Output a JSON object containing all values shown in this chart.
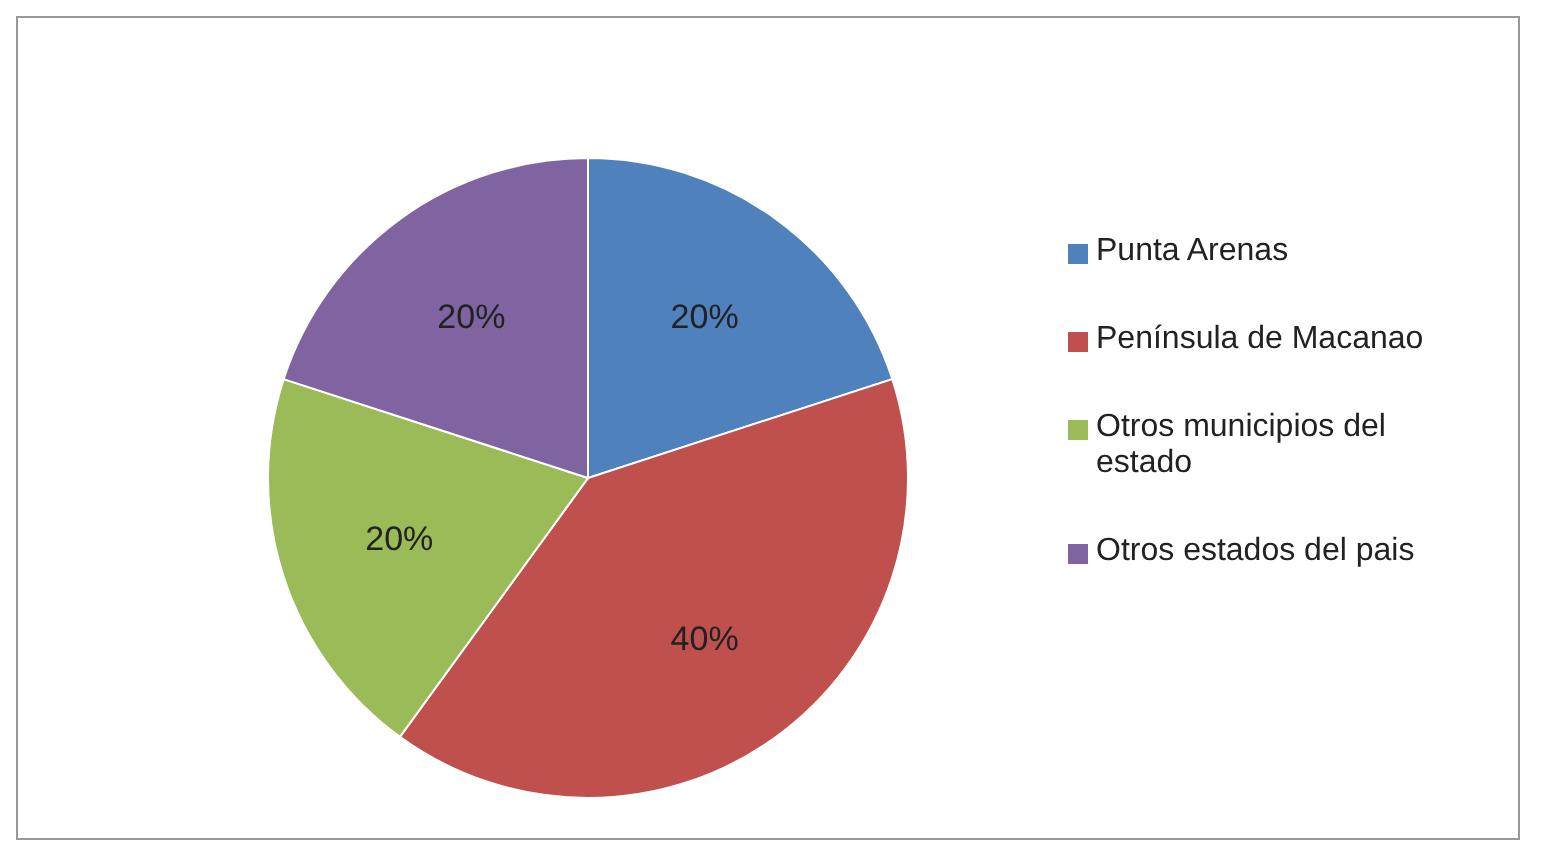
{
  "chart_data": {
    "type": "pie",
    "categories": [
      "Punta Arenas",
      "Península de Macanao",
      "Otros municipios del estado",
      "Otros estados del pais"
    ],
    "values": [
      20,
      40,
      20,
      20
    ],
    "colors": [
      "#4f81bd",
      "#c0504d",
      "#9bbb59",
      "#8064a2"
    ],
    "value_labels": [
      "20%",
      "40%",
      "20%",
      "20%"
    ],
    "legend": "right"
  }
}
